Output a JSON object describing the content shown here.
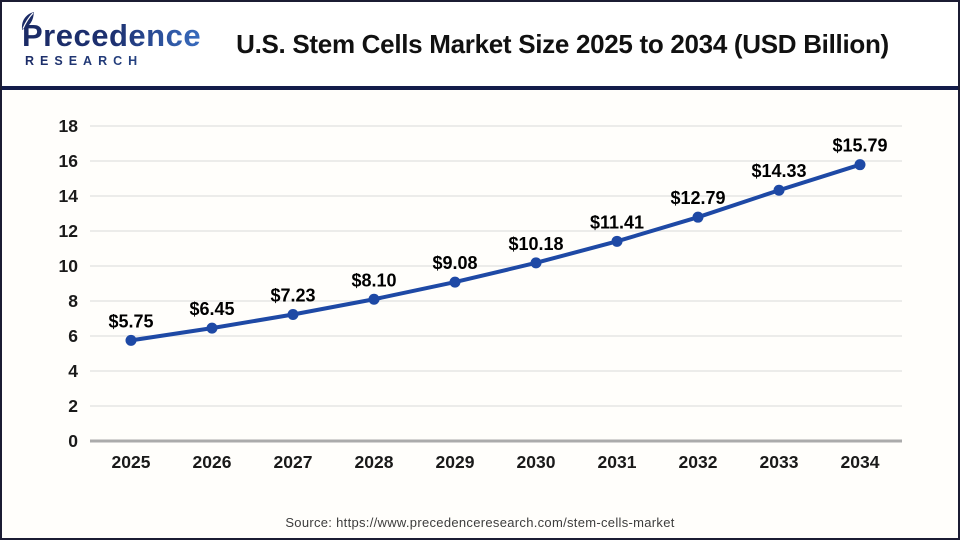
{
  "header": {
    "logo_top": "Precedence",
    "logo_bottom": "RESEARCH",
    "title": "U.S. Stem Cells Market Size 2025 to 2034 (USD Billion)"
  },
  "chart_data": {
    "type": "line",
    "title": "U.S. Stem Cells Market Size 2025 to 2034 (USD Billion)",
    "categories": [
      "2025",
      "2026",
      "2027",
      "2028",
      "2029",
      "2030",
      "2031",
      "2032",
      "2033",
      "2034"
    ],
    "series": [
      {
        "name": "U.S. Stem Cells Market Size (USD Billion)",
        "values": [
          5.75,
          6.45,
          7.23,
          8.1,
          9.08,
          10.18,
          11.41,
          12.79,
          14.33,
          15.79
        ]
      }
    ],
    "point_labels": [
      "$5.75",
      "$6.45",
      "$7.23",
      "$8.10",
      "$9.08",
      "$10.18",
      "$11.41",
      "$12.79",
      "$14.33",
      "$15.79"
    ],
    "xlabel": "",
    "ylabel": "",
    "ylim": [
      0,
      18
    ],
    "ytick_step": 2,
    "grid": true,
    "legend": "none",
    "colors": {
      "line": "#1e49a5",
      "marker": "#1e49a5",
      "gridline": "#e5e5e5",
      "zero_axis": "#ababab",
      "tick_text": "#1a1a1a",
      "data_label": "#000000"
    }
  },
  "footer": {
    "source": "Source: https://www.precedenceresearch.com/stem-cells-market"
  }
}
